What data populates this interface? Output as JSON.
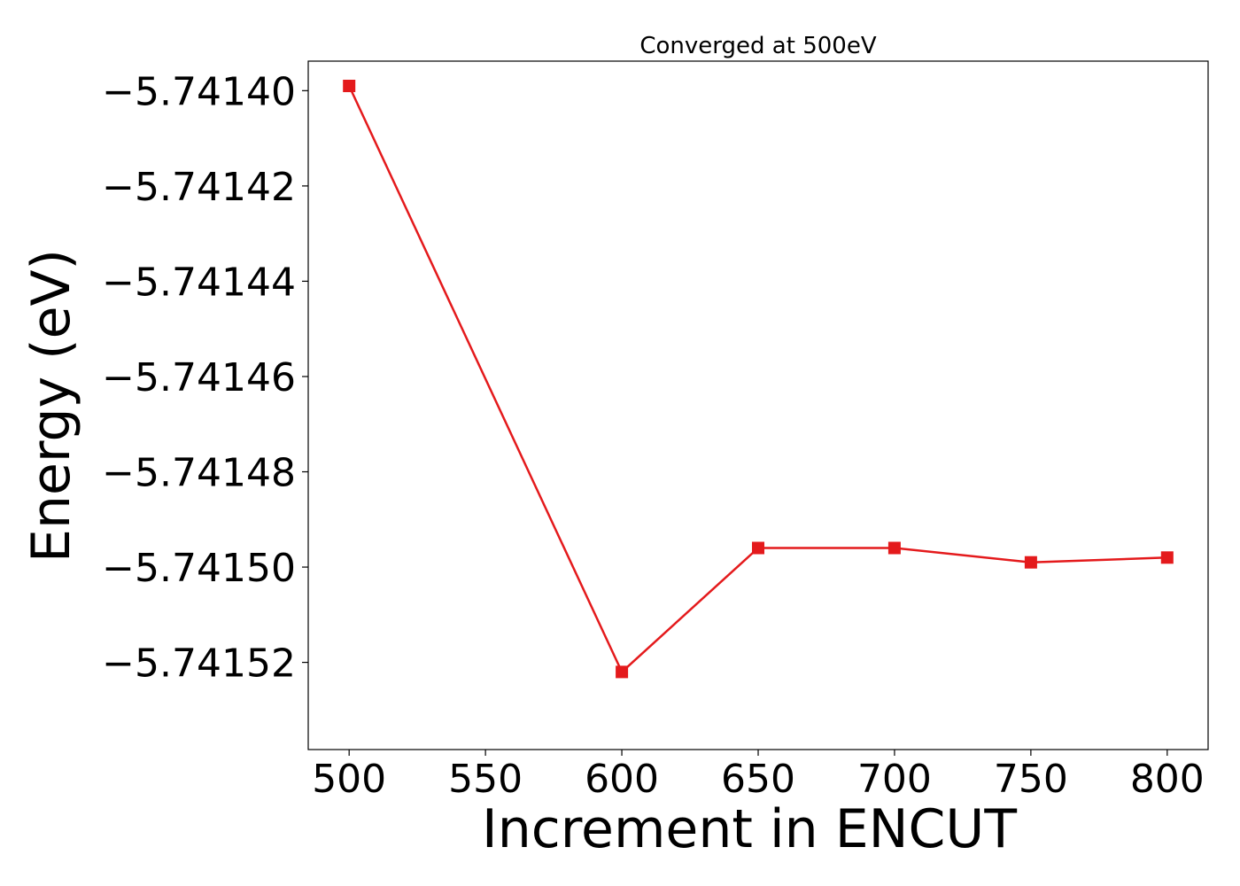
{
  "chart_data": {
    "type": "line",
    "title": "Converged at 500eV",
    "xlabel": "Increment in ENCUT",
    "ylabel": "Energy (eV)",
    "x": [
      500,
      600,
      650,
      700,
      750,
      800
    ],
    "series": [
      {
        "values": [
          -5.741399,
          -5.741522,
          -5.741496,
          -5.741496,
          -5.741499,
          -5.741498
        ],
        "color": "#e41a1c",
        "marker": "square"
      }
    ],
    "xlim": [
      485,
      815
    ],
    "ylim": [
      -5.7415383,
      -5.7413938
    ],
    "xticks": [
      500,
      550,
      600,
      650,
      700,
      750,
      800
    ],
    "xtick_labels": [
      "500",
      "550",
      "600",
      "650",
      "700",
      "750",
      "800"
    ],
    "yticks": [
      -5.7414,
      -5.74142,
      -5.74144,
      -5.74146,
      -5.74148,
      -5.7415,
      -5.74152
    ],
    "ytick_labels": [
      "−5.74140",
      "−5.74142",
      "−5.74144",
      "−5.74146",
      "−5.74148",
      "−5.74150",
      "−5.74152"
    ],
    "grid": false,
    "legend": "none"
  }
}
